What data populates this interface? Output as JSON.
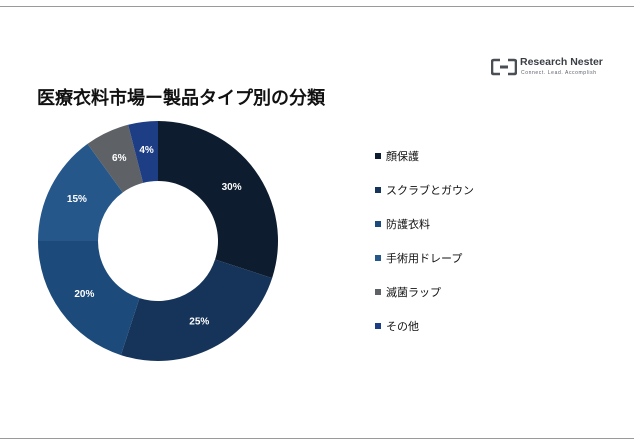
{
  "logo": {
    "name": "Research Nester",
    "tagline": "Connect. Lead. Accomplish"
  },
  "chart_data": {
    "type": "donut",
    "title": "医療衣料市場ー製品タイプ別の分類",
    "unit": "%",
    "categories": [
      "顔保護",
      "スクラブとガウン",
      "防護衣料",
      "手術用ドレープ",
      "滅菌ラップ",
      "その他"
    ],
    "values": [
      30,
      25,
      20,
      15,
      6,
      4
    ],
    "labels": [
      "30%",
      "25%",
      "20%",
      "15%",
      "6%",
      "4%"
    ],
    "colors": [
      "#0e1c2f",
      "#16345a",
      "#1c4a7a",
      "#25578a",
      "#5e6166",
      "#1d3d85"
    ],
    "label_colors": [
      "#ffffff",
      "#ffffff",
      "#ffffff",
      "#ffffff",
      "#ffffff",
      "#ffffff"
    ],
    "start_angle_deg": 0,
    "direction": "clockwise",
    "legend_position": "right"
  }
}
